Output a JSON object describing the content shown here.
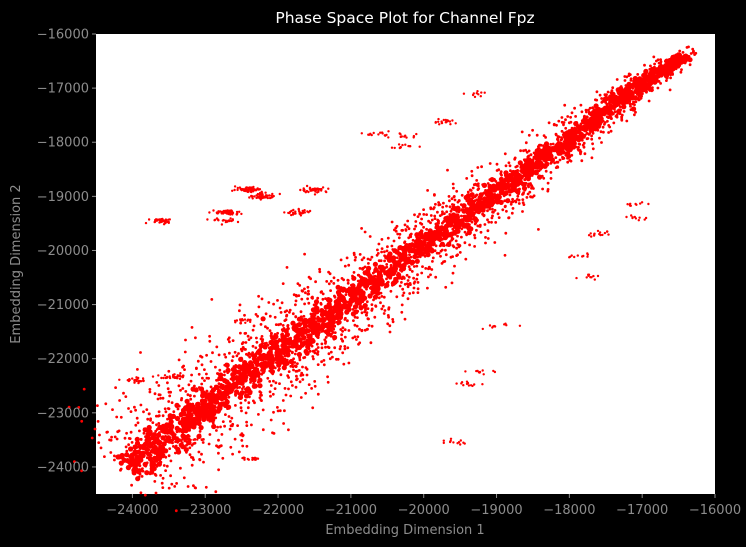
{
  "chart_data": {
    "type": "scatter",
    "title": "Phase Space Plot for Channel Fpz",
    "xlabel": "Embedding Dimension 1",
    "ylabel": "Embedding Dimension 2",
    "xlim": [
      -24500,
      -16000
    ],
    "ylim": [
      -24500,
      -16000
    ],
    "y_inverted": true,
    "x_ticks": [
      -24000,
      -23000,
      -22000,
      -21000,
      -20000,
      -19000,
      -18000,
      -17000,
      -16000
    ],
    "y_ticks": [
      -16000,
      -17000,
      -18000,
      -19000,
      -20000,
      -21000,
      -22000,
      -23000,
      -24000
    ],
    "x_tick_labels": [
      "−24000",
      "−23000",
      "−22000",
      "−21000",
      "−20000",
      "−19000",
      "−18000",
      "−17000",
      "−16000"
    ],
    "y_tick_labels": [
      "−16000",
      "−17000",
      "−18000",
      "−19000",
      "−20000",
      "−21000",
      "−22000",
      "−23000",
      "−24000"
    ],
    "grid": false,
    "marker_color": "#ff0000",
    "background": "#ffffff",
    "figure_background": "#000000",
    "text_color": "#8c8c8c",
    "title_color": "#ffffff",
    "main_band": [
      [
        -24100,
        -24050
      ],
      [
        -23500,
        -23400
      ],
      [
        -23000,
        -22900
      ],
      [
        -22500,
        -22350
      ],
      [
        -22000,
        -21900
      ],
      [
        -21500,
        -21400
      ],
      [
        -21000,
        -20900
      ],
      [
        -20500,
        -20400
      ],
      [
        -20000,
        -19900
      ],
      [
        -19500,
        -19450
      ],
      [
        -19000,
        -18950
      ],
      [
        -18500,
        -18450
      ],
      [
        -18000,
        -17950
      ],
      [
        -17500,
        -17400
      ],
      [
        -17000,
        -16900
      ],
      [
        -16400,
        -16400
      ]
    ],
    "clusters": [
      {
        "x": -23600,
        "y": -19450,
        "count": 40
      },
      {
        "x": -22400,
        "y": -18870,
        "count": 60
      },
      {
        "x": -21500,
        "y": -18880,
        "count": 40
      },
      {
        "x": -22200,
        "y": -19000,
        "count": 60
      },
      {
        "x": -22700,
        "y": -19300,
        "count": 50
      },
      {
        "x": -21700,
        "y": -19300,
        "count": 30
      },
      {
        "x": -22700,
        "y": -19450,
        "count": 20
      },
      {
        "x": -20650,
        "y": -17850,
        "count": 15
      },
      {
        "x": -20250,
        "y": -17870,
        "count": 10
      },
      {
        "x": -20300,
        "y": -18080,
        "count": 12
      },
      {
        "x": -19700,
        "y": -17620,
        "count": 20
      },
      {
        "x": -19300,
        "y": -17100,
        "count": 10
      },
      {
        "x": -17100,
        "y": -19150,
        "count": 10
      },
      {
        "x": -17050,
        "y": -19400,
        "count": 10
      },
      {
        "x": -17600,
        "y": -19700,
        "count": 15
      },
      {
        "x": -17900,
        "y": -20100,
        "count": 10
      },
      {
        "x": -17700,
        "y": -20500,
        "count": 10
      },
      {
        "x": -19000,
        "y": -21400,
        "count": 10
      },
      {
        "x": -19200,
        "y": -22250,
        "count": 10
      },
      {
        "x": -19400,
        "y": -22450,
        "count": 12
      },
      {
        "x": -19600,
        "y": -23550,
        "count": 12
      },
      {
        "x": -22500,
        "y": -21300,
        "count": 15
      },
      {
        "x": -23950,
        "y": -22400,
        "count": 20
      },
      {
        "x": -23450,
        "y": -22350,
        "count": 30
      },
      {
        "x": -23300,
        "y": -23500,
        "count": 40
      },
      {
        "x": -22400,
        "y": -23850,
        "count": 15
      }
    ]
  }
}
